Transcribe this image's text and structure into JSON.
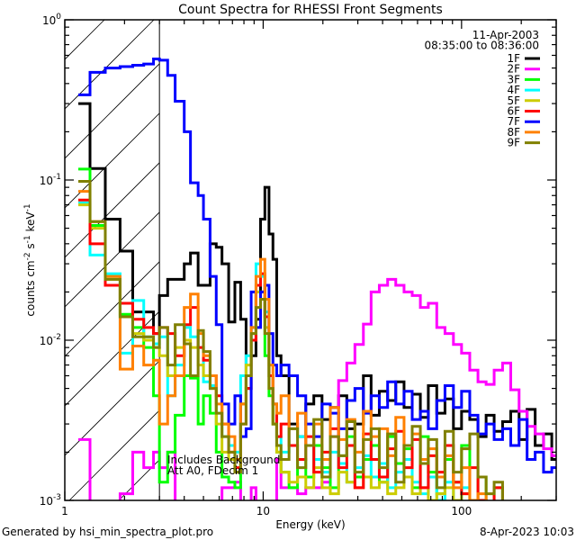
{
  "chart_data": {
    "type": "line",
    "title": "Count Spectra for RHESSI Front Segments",
    "xlabel": "Energy (keV)",
    "ylabel_parts": [
      "counts cm",
      "-2",
      " s",
      "-1",
      " keV",
      "-1"
    ],
    "xscale": "log",
    "yscale": "log",
    "xlim": [
      1,
      300
    ],
    "ylim": [
      0.001,
      1
    ],
    "x_ticks": [
      {
        "value": 1,
        "label": "1"
      },
      {
        "value": 10,
        "label": "10"
      },
      {
        "value": 100,
        "label": "100"
      }
    ],
    "y_ticks": [
      {
        "value": 1,
        "base": "10",
        "exp": "0"
      },
      {
        "value": 0.1,
        "base": "10",
        "exp": "-1"
      },
      {
        "value": 0.01,
        "base": "10",
        "exp": "-2"
      },
      {
        "value": 0.001,
        "base": "10",
        "exp": "-3"
      }
    ],
    "grid": false,
    "legend_placement": "top-right",
    "legend_header": [
      "11-Apr-2003",
      "08:35:00 to 08:36:00"
    ],
    "annotations": [
      "Includes Background",
      "Att A0, FDecim 1"
    ],
    "hatched_region_keV": [
      1,
      3
    ],
    "energy_edges_keV": [
      1.17,
      1.34,
      1.6,
      1.9,
      2.2,
      2.5,
      2.8,
      3.0,
      3.3,
      3.6,
      4.0,
      4.3,
      4.7,
      5.0,
      5.4,
      5.8,
      6.2,
      6.7,
      7.2,
      7.7,
      8.2,
      8.7,
      9.2,
      9.7,
      10.2,
      10.7,
      11.2,
      11.7,
      12.3,
      13.5,
      14.9,
      16.4,
      18,
      19.8,
      21.8,
      24,
      26.4,
      29,
      32,
      35,
      38.5,
      42.4,
      46.6,
      51.3,
      56.4,
      62,
      68,
      75,
      82.5,
      91,
      100,
      110,
      121,
      133,
      146,
      161,
      177,
      195,
      214,
      235,
      259,
      285,
      300
    ],
    "series": [
      {
        "name": "1F",
        "color": "#000000",
        "values": [
          0.3,
          0.118,
          0.057,
          0.036,
          0.015,
          0.015,
          0.011,
          0.019,
          0.024,
          0.024,
          0.03,
          0.035,
          0.022,
          0.022,
          0.04,
          0.038,
          0.03,
          0.013,
          0.023,
          0.0135,
          0.005,
          0.008,
          0.0135,
          0.057,
          0.09,
          0.046,
          0.032,
          0.008,
          0.006,
          0.003,
          0.0025,
          0.004,
          0.0045,
          0.0032,
          0.0038,
          0.0045,
          0.0028,
          0.003,
          0.006,
          0.0034,
          0.0048,
          0.0042,
          0.0055,
          0.0038,
          0.0046,
          0.0033,
          0.0052,
          0.0035,
          0.0043,
          0.0028,
          0.0036,
          0.0032,
          0.0025,
          0.0034,
          0.0027,
          0.0031,
          0.0036,
          0.0024,
          0.0037,
          0.0022,
          0.0026,
          0.0018
        ]
      },
      {
        "name": "2F",
        "color": "#ff00ff",
        "values": [
          0.0024,
          0.0008,
          0.0008,
          0.0011,
          0.002,
          0.0016,
          0.002,
          0.0016,
          0.002,
          0.0008,
          0.0008,
          0.0008,
          0.0008,
          0.0008,
          0.0008,
          0.0008,
          0.0012,
          0.0012,
          0.0013,
          0.0009,
          0.0008,
          0.0012,
          0.0008,
          0.0008,
          0.0008,
          0.0008,
          0.0008,
          0.0018,
          0.0012,
          0.0012,
          0.0011,
          0.0012,
          0.0012,
          0.0013,
          0.0025,
          0.0056,
          0.0072,
          0.0094,
          0.0126,
          0.02,
          0.022,
          0.024,
          0.022,
          0.02,
          0.019,
          0.016,
          0.017,
          0.012,
          0.011,
          0.0094,
          0.0083,
          0.0065,
          0.0055,
          0.0053,
          0.0065,
          0.0072,
          0.0049,
          0.0036,
          0.0029,
          0.0026,
          0.0021,
          0.0019
        ]
      },
      {
        "name": "3F",
        "color": "#00ff00",
        "values": [
          0.117,
          0.052,
          0.025,
          0.0145,
          0.012,
          0.009,
          0.0045,
          0.0013,
          0.002,
          0.0034,
          0.006,
          0.0058,
          0.003,
          0.0045,
          0.0035,
          0.002,
          0.0014,
          0.0013,
          0.0012,
          0.004,
          0.006,
          0.012,
          0.02,
          0.018,
          0.008,
          0.0045,
          0.003,
          0.002,
          0.0015,
          0.0012,
          0.0018,
          0.0014,
          0.0022,
          0.0016,
          0.0012,
          0.0019,
          0.0025,
          0.0014,
          0.0018,
          0.0022,
          0.0013,
          0.0025,
          0.0017,
          0.0021,
          0.0012,
          0.0025,
          0.0015,
          0.0011,
          0.0018,
          0.0013,
          0.0022,
          0.0009,
          0.0014,
          0.0008,
          0.0012,
          0.0009,
          0.0008,
          0.0008,
          0.0008,
          0.0008,
          0.0008,
          0.0008
        ]
      },
      {
        "name": "4F",
        "color": "#00ffff",
        "values": [
          0.072,
          0.034,
          0.026,
          0.0083,
          0.0177,
          0.0105,
          0.0095,
          0.0105,
          0.0045,
          0.007,
          0.012,
          0.0105,
          0.009,
          0.0055,
          0.0052,
          0.0035,
          0.0025,
          0.0022,
          0.002,
          0.006,
          0.008,
          0.012,
          0.03,
          0.025,
          0.015,
          0.006,
          0.004,
          0.0025,
          0.002,
          0.0028,
          0.0025,
          0.0022,
          0.0018,
          0.0015,
          0.002,
          0.0017,
          0.0013,
          0.0016,
          0.0019,
          0.0014,
          0.0017,
          0.0012,
          0.0015,
          0.0018,
          0.0013,
          0.0011,
          0.0014,
          0.001,
          0.0013,
          0.0009,
          0.0012,
          0.0009,
          0.0008,
          0.0009,
          0.0008,
          0.0008,
          0.0008,
          0.0008,
          0.0008,
          0.0008,
          0.0008,
          0.0008
        ]
      },
      {
        "name": "5F",
        "color": "#cccc00",
        "values": [
          0.07,
          0.05,
          0.024,
          0.014,
          0.011,
          0.01,
          0.009,
          0.008,
          0.006,
          0.009,
          0.01,
          0.009,
          0.007,
          0.006,
          0.005,
          0.003,
          0.002,
          0.0018,
          0.0015,
          0.004,
          0.007,
          0.011,
          0.02,
          0.02,
          0.012,
          0.005,
          0.003,
          0.002,
          0.0015,
          0.0013,
          0.0014,
          0.0012,
          0.0016,
          0.0012,
          0.0011,
          0.0015,
          0.0013,
          0.0012,
          0.0014,
          0.0012,
          0.0013,
          0.0011,
          0.0012,
          0.0014,
          0.0011,
          0.0012,
          0.001,
          0.0011,
          0.0012,
          0.001,
          0.0011,
          0.0009,
          0.001,
          0.0009,
          0.0008,
          0.0009,
          0.0008,
          0.0008,
          0.0008,
          0.0008,
          0.0008,
          0.0008
        ]
      },
      {
        "name": "6F",
        "color": "#ff0000",
        "values": [
          0.075,
          0.04,
          0.022,
          0.017,
          0.0135,
          0.012,
          0.011,
          0.012,
          0.011,
          0.008,
          0.0125,
          0.016,
          0.009,
          0.0075,
          0.006,
          0.0045,
          0.003,
          0.002,
          0.0016,
          0.003,
          0.005,
          0.01,
          0.022,
          0.026,
          0.014,
          0.006,
          0.004,
          0.0025,
          0.003,
          0.0022,
          0.0018,
          0.0025,
          0.0015,
          0.002,
          0.0028,
          0.0016,
          0.0022,
          0.0012,
          0.0026,
          0.0018,
          0.0014,
          0.0021,
          0.0027,
          0.0016,
          0.0024,
          0.0012,
          0.0019,
          0.0015,
          0.0022,
          0.0013,
          0.0011,
          0.0016,
          0.001,
          0.0009,
          0.0012,
          0.0008,
          0.0008,
          0.0008,
          0.0008,
          0.0008,
          0.0008,
          0.0008
        ]
      },
      {
        "name": "7F",
        "color": "#0000ff",
        "values": [
          0.34,
          0.47,
          0.5,
          0.51,
          0.52,
          0.53,
          0.57,
          0.56,
          0.45,
          0.31,
          0.2,
          0.096,
          0.08,
          0.057,
          0.025,
          0.0125,
          0.004,
          0.003,
          0.0045,
          0.0025,
          0.0028,
          0.02,
          0.012,
          0.02,
          0.022,
          0.011,
          0.007,
          0.006,
          0.007,
          0.006,
          0.0045,
          0.003,
          0.0025,
          0.004,
          0.0035,
          0.0028,
          0.0042,
          0.005,
          0.0035,
          0.0045,
          0.0038,
          0.0055,
          0.004,
          0.0048,
          0.0032,
          0.0036,
          0.0028,
          0.0042,
          0.0052,
          0.0038,
          0.0048,
          0.0034,
          0.0026,
          0.003,
          0.0024,
          0.0028,
          0.0022,
          0.0032,
          0.0018,
          0.002,
          0.0015,
          0.0016
        ]
      },
      {
        "name": "8F",
        "color": "#ff8000",
        "values": [
          0.085,
          0.055,
          0.025,
          0.0066,
          0.0092,
          0.007,
          0.0075,
          0.003,
          0.0045,
          0.006,
          0.016,
          0.0194,
          0.011,
          0.008,
          0.006,
          0.004,
          0.003,
          0.0025,
          0.0018,
          0.004,
          0.006,
          0.012,
          0.025,
          0.032,
          0.018,
          0.007,
          0.004,
          0.0035,
          0.0045,
          0.0028,
          0.0035,
          0.0022,
          0.003,
          0.0018,
          0.0038,
          0.0024,
          0.0032,
          0.002,
          0.0036,
          0.0025,
          0.0028,
          0.0019,
          0.0033,
          0.0022,
          0.0026,
          0.0018,
          0.0021,
          0.0014,
          0.0019,
          0.0012,
          0.0016,
          0.001,
          0.0011,
          0.0008,
          0.0009,
          0.0008,
          0.0008,
          0.0008,
          0.0008,
          0.0008,
          0.0008,
          0.0008
        ]
      },
      {
        "name": "9F",
        "color": "#808000",
        "values": [
          0.098,
          0.055,
          0.024,
          0.014,
          0.0105,
          0.0105,
          0.009,
          0.012,
          0.007,
          0.0125,
          0.0095,
          0.006,
          0.0115,
          0.0085,
          0.005,
          0.0035,
          0.0025,
          0.002,
          0.0015,
          0.003,
          0.006,
          0.011,
          0.016,
          0.018,
          0.011,
          0.005,
          0.003,
          0.0022,
          0.0018,
          0.0028,
          0.0016,
          0.0022,
          0.0032,
          0.0014,
          0.0025,
          0.0019,
          0.0031,
          0.0015,
          0.0024,
          0.0028,
          0.0016,
          0.0026,
          0.0013,
          0.0022,
          0.0029,
          0.0017,
          0.0024,
          0.0012,
          0.0027,
          0.0015,
          0.0021,
          0.0026,
          0.0014,
          0.0011,
          0.0013,
          0.0009,
          0.0008,
          0.0008,
          0.0008,
          0.0008,
          0.0008,
          0.0008
        ]
      }
    ]
  },
  "footer": {
    "generated_by": "Generated by hsi_min_spectra_plot.pro",
    "timestamp": "8-Apr-2023 10:03"
  }
}
